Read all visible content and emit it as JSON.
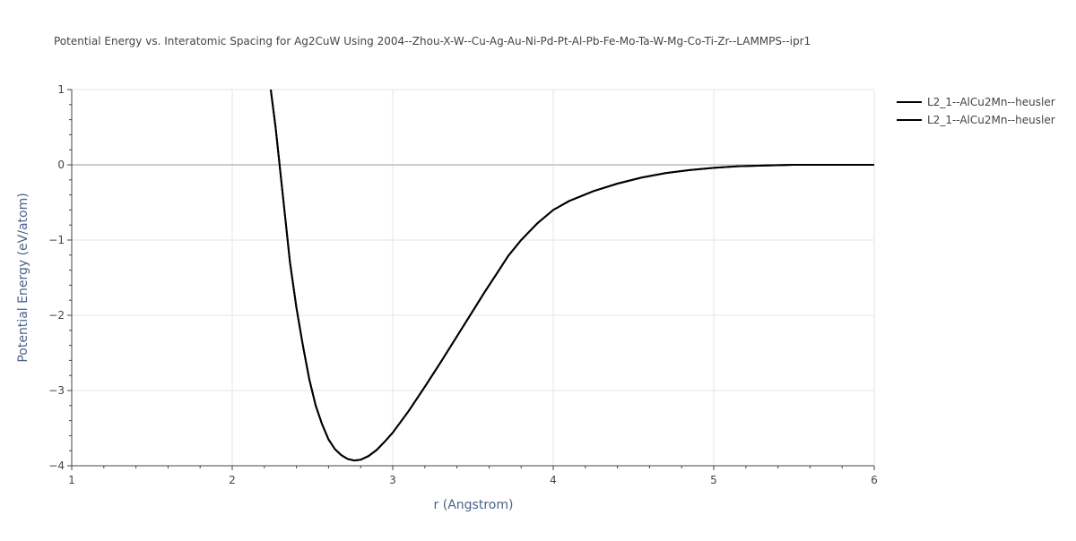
{
  "chart_data": {
    "type": "line",
    "title": "Potential Energy vs. Interatomic Spacing for Ag2CuW Using 2004--Zhou-X-W--Cu-Ag-Au-Ni-Pd-Pt-Al-Pb-Fe-Mo-Ta-W-Mg-Co-Ti-Zr--LAMMPS--ipr1",
    "xlabel": "r (Angstrom)",
    "ylabel": "Potential Energy (eV/atom)",
    "xlim": [
      1,
      6
    ],
    "ylim": [
      -4,
      1
    ],
    "x_ticks": [
      1,
      2,
      3,
      4,
      5,
      6
    ],
    "y_ticks": [
      -4,
      -3,
      -2,
      -1,
      0,
      1
    ],
    "x_tick_labels": [
      "1",
      "2",
      "3",
      "4",
      "5",
      "6"
    ],
    "y_tick_labels": [
      "−4",
      "−3",
      "−2",
      "−1",
      "0",
      "1"
    ],
    "grid": true,
    "legend_position": "top-right",
    "colors": {
      "line": "#000000",
      "grid": "#e5e5e5",
      "zeroline": "#cccccc",
      "text": "#444444",
      "axis_title": "#4c6288"
    },
    "series": [
      {
        "name": "L2_1--AlCu2Mn--heusler",
        "x": [
          2.24,
          2.27,
          2.3,
          2.33,
          2.36,
          2.4,
          2.44,
          2.48,
          2.52,
          2.56,
          2.6,
          2.64,
          2.68,
          2.72,
          2.76,
          2.8,
          2.85,
          2.9,
          2.95,
          3.0,
          3.1,
          3.2,
          3.3,
          3.4,
          3.5,
          3.57,
          3.65,
          3.72,
          3.8,
          3.9,
          4.0,
          4.1,
          4.25,
          4.4,
          4.55,
          4.7,
          4.85,
          5.0,
          5.15,
          5.3,
          5.5,
          5.7,
          6.0
        ],
        "y": [
          1.0,
          0.5,
          -0.1,
          -0.7,
          -1.3,
          -1.9,
          -2.4,
          -2.85,
          -3.2,
          -3.45,
          -3.65,
          -3.78,
          -3.86,
          -3.91,
          -3.93,
          -3.92,
          -3.87,
          -3.79,
          -3.68,
          -3.56,
          -3.27,
          -2.95,
          -2.62,
          -2.28,
          -1.94,
          -1.7,
          -1.44,
          -1.21,
          -1.0,
          -0.78,
          -0.6,
          -0.48,
          -0.35,
          -0.25,
          -0.17,
          -0.11,
          -0.07,
          -0.04,
          -0.02,
          -0.01,
          0.0,
          0.0,
          0.0
        ]
      },
      {
        "name": "L2_1--AlCu2Mn--heusler",
        "x": [
          2.24,
          2.27,
          2.3,
          2.33,
          2.36,
          2.4,
          2.44,
          2.48,
          2.52,
          2.56,
          2.6,
          2.64,
          2.68,
          2.72,
          2.76,
          2.8,
          2.85,
          2.9,
          2.95,
          3.0,
          3.1,
          3.2,
          3.3,
          3.4,
          3.5,
          3.57,
          3.65,
          3.72,
          3.8,
          3.9,
          4.0,
          4.1,
          4.25,
          4.4,
          4.55,
          4.7,
          4.85,
          5.0,
          5.15,
          5.3,
          5.5,
          5.7,
          6.0
        ],
        "y": [
          1.0,
          0.5,
          -0.1,
          -0.7,
          -1.3,
          -1.9,
          -2.4,
          -2.85,
          -3.2,
          -3.45,
          -3.65,
          -3.78,
          -3.86,
          -3.91,
          -3.93,
          -3.92,
          -3.87,
          -3.79,
          -3.68,
          -3.56,
          -3.27,
          -2.95,
          -2.62,
          -2.28,
          -1.94,
          -1.7,
          -1.44,
          -1.21,
          -1.0,
          -0.78,
          -0.6,
          -0.48,
          -0.35,
          -0.25,
          -0.17,
          -0.11,
          -0.07,
          -0.04,
          -0.02,
          -0.01,
          0.0,
          0.0,
          0.0
        ]
      }
    ]
  }
}
